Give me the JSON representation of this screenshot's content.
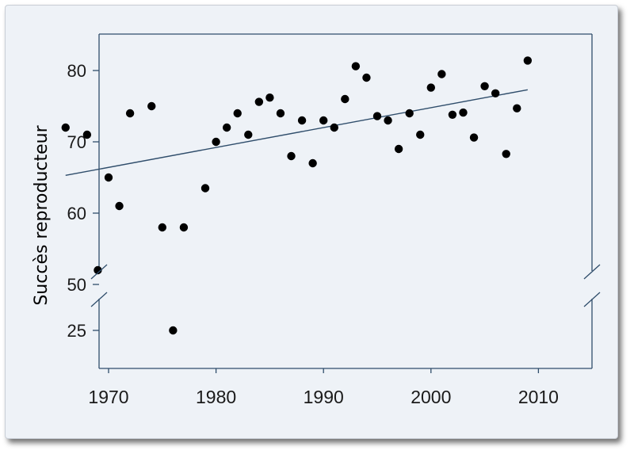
{
  "colors": {
    "background": "#eef2f7",
    "axis": "#2f4d6b",
    "trend": "#2f4d6b",
    "points": "#000000"
  },
  "chart_data": {
    "type": "scatter",
    "title": "",
    "xlabel": "",
    "ylabel": "Succès reproducteur",
    "xlim": [
      1965,
      2010
    ],
    "ylim_upper": [
      50,
      85
    ],
    "ylim_lower": [
      20,
      29
    ],
    "axis_break": "between 25 and 50 on y axis",
    "x_ticks": [
      1970,
      1980,
      1990,
      2000,
      2010
    ],
    "y_ticks": [
      25,
      50,
      60,
      70,
      80
    ],
    "x_tick_labels": [
      "1970",
      "1980",
      "1990",
      "2000",
      "2010"
    ],
    "y_tick_labels": [
      "25",
      "50",
      "60",
      "70",
      "80"
    ],
    "grid": false,
    "legend": "none",
    "points": [
      {
        "x": 1966,
        "y": 72
      },
      {
        "x": 1968,
        "y": 71
      },
      {
        "x": 1969,
        "y": 52
      },
      {
        "x": 1970,
        "y": 65
      },
      {
        "x": 1971,
        "y": 61
      },
      {
        "x": 1972,
        "y": 74
      },
      {
        "x": 1974,
        "y": 75
      },
      {
        "x": 1975,
        "y": 58
      },
      {
        "x": 1976,
        "y": 25
      },
      {
        "x": 1977,
        "y": 58
      },
      {
        "x": 1979,
        "y": 63.5
      },
      {
        "x": 1980,
        "y": 70
      },
      {
        "x": 1981,
        "y": 72
      },
      {
        "x": 1982,
        "y": 74
      },
      {
        "x": 1983,
        "y": 71
      },
      {
        "x": 1984,
        "y": 75.6
      },
      {
        "x": 1985,
        "y": 76.2
      },
      {
        "x": 1986,
        "y": 74
      },
      {
        "x": 1987,
        "y": 68
      },
      {
        "x": 1988,
        "y": 73
      },
      {
        "x": 1989,
        "y": 67
      },
      {
        "x": 1990,
        "y": 73
      },
      {
        "x": 1991,
        "y": 72
      },
      {
        "x": 1992,
        "y": 76
      },
      {
        "x": 1993,
        "y": 80.6
      },
      {
        "x": 1994,
        "y": 79
      },
      {
        "x": 1995,
        "y": 73.6
      },
      {
        "x": 1996,
        "y": 73
      },
      {
        "x": 1997,
        "y": 69
      },
      {
        "x": 1998,
        "y": 74
      },
      {
        "x": 1999,
        "y": 71
      },
      {
        "x": 2000,
        "y": 77.6
      },
      {
        "x": 2001,
        "y": 79.5
      },
      {
        "x": 2002,
        "y": 73.8
      },
      {
        "x": 2003,
        "y": 74.1
      },
      {
        "x": 2004,
        "y": 70.6
      },
      {
        "x": 2005,
        "y": 77.8
      },
      {
        "x": 2006,
        "y": 76.8
      },
      {
        "x": 2007,
        "y": 68.3
      },
      {
        "x": 2008,
        "y": 74.7
      },
      {
        "x": 2009,
        "y": 81.4
      }
    ],
    "trend_line": {
      "x": [
        1966,
        2009
      ],
      "y": [
        65.3,
        77.3
      ]
    }
  }
}
